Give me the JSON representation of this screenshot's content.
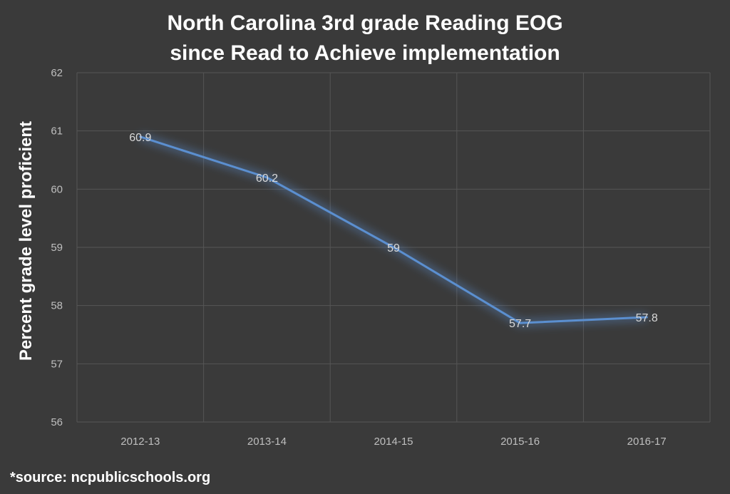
{
  "chart_data": {
    "type": "line",
    "title": "North Carolina 3rd grade Reading EOG",
    "subtitle": "since Read to Achieve implementation",
    "xlabel": "",
    "ylabel": "Percent grade level proficient",
    "categories": [
      "2012-13",
      "2013-14",
      "2014-15",
      "2015-16",
      "2016-17"
    ],
    "series": [
      {
        "values": [
          60.9,
          60.2,
          59,
          57.7,
          57.8
        ],
        "labels": [
          "60.9",
          "60.2",
          "59",
          "57.7",
          "57.8"
        ]
      }
    ],
    "ylim": [
      56,
      62
    ],
    "yticks": [
      "56",
      "57",
      "58",
      "59",
      "60",
      "61",
      "62"
    ],
    "grid": true,
    "legend": "none",
    "colors": {
      "background": "#3a3a3a",
      "line": "#5b8fd0",
      "grid": "#565656",
      "text": "#ffffff"
    }
  },
  "source": "*source:  ncpublicschools.org"
}
